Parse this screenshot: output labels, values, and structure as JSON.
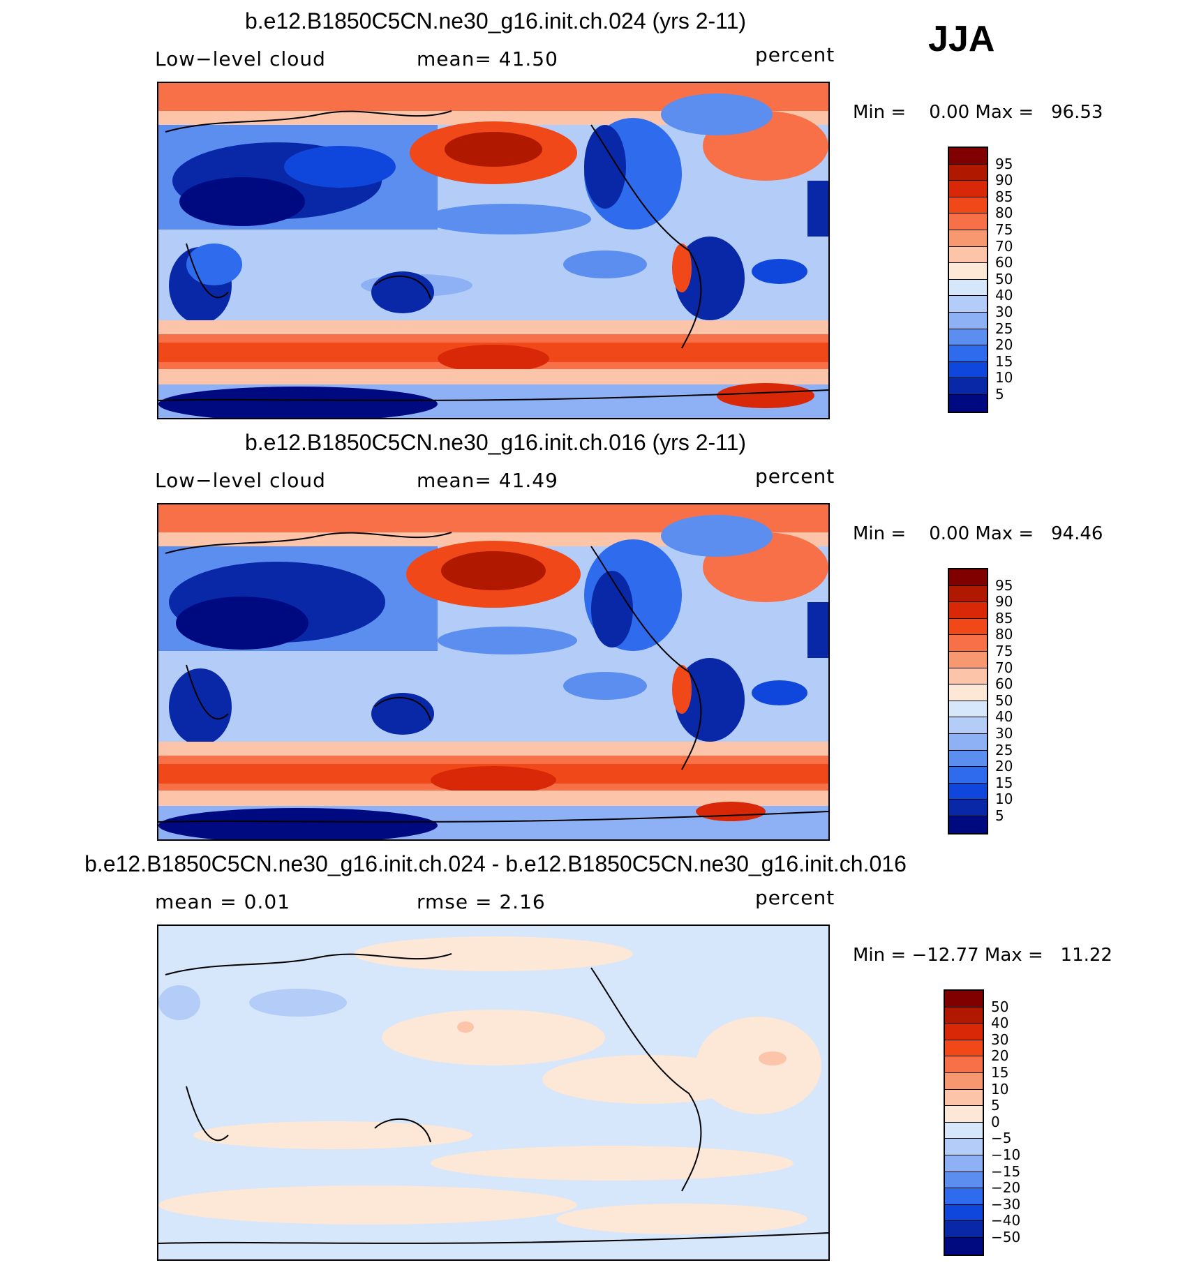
{
  "season": "JJA",
  "panels": [
    {
      "title": "b.e12.B1850C5CN.ne30_g16.init.ch.024 (yrs 2-11)",
      "left_label": "Low−level cloud",
      "center_label": "mean=   41.50",
      "units": "percent",
      "minmax": "Min =    0.00 Max =   96.53",
      "colorbar": {
        "colors": [
          "#800000",
          "#b01800",
          "#d82808",
          "#f04818",
          "#f87048",
          "#f89870",
          "#fcc4a8",
          "#fde7d6",
          "#d6e6fb",
          "#b3cdf8",
          "#8db1f4",
          "#5c8ef0",
          "#2f6ced",
          "#0f47dc",
          "#0828a8",
          "#000a80"
        ],
        "ticks": [
          "95",
          "90",
          "85",
          "80",
          "75",
          "70",
          "60",
          "50",
          "40",
          "30",
          "25",
          "20",
          "15",
          "10",
          "5"
        ]
      }
    },
    {
      "title": "b.e12.B1850C5CN.ne30_g16.init.ch.016 (yrs 2-11)",
      "left_label": "Low−level cloud",
      "center_label": "mean=   41.49",
      "units": "percent",
      "minmax": "Min =    0.00 Max =   94.46",
      "colorbar": {
        "colors": [
          "#800000",
          "#b01800",
          "#d82808",
          "#f04818",
          "#f87048",
          "#f89870",
          "#fcc4a8",
          "#fde7d6",
          "#d6e6fb",
          "#b3cdf8",
          "#8db1f4",
          "#5c8ef0",
          "#2f6ced",
          "#0f47dc",
          "#0828a8",
          "#000a80"
        ],
        "ticks": [
          "95",
          "90",
          "85",
          "80",
          "75",
          "70",
          "60",
          "50",
          "40",
          "30",
          "25",
          "20",
          "15",
          "10",
          "5"
        ]
      }
    },
    {
      "title": "b.e12.B1850C5CN.ne30_g16.init.ch.024 - b.e12.B1850C5CN.ne30_g16.init.ch.016",
      "left_label": "mean =     0.01",
      "center_label": "rmse =     2.16",
      "units": "percent",
      "minmax": "Min = −12.77 Max =   11.22",
      "colorbar": {
        "colors": [
          "#800000",
          "#b01800",
          "#d82808",
          "#f04818",
          "#f87048",
          "#f89870",
          "#fcc4a8",
          "#fde7d6",
          "#d6e6fb",
          "#b3cdf8",
          "#8db1f4",
          "#5c8ef0",
          "#2f6ced",
          "#0f47dc",
          "#0828a8",
          "#000a80"
        ],
        "ticks": [
          "50",
          "40",
          "30",
          "20",
          "15",
          "10",
          "5",
          "0",
          "−5",
          "−10",
          "−15",
          "−20",
          "−30",
          "−40",
          "−50"
        ]
      }
    }
  ]
}
